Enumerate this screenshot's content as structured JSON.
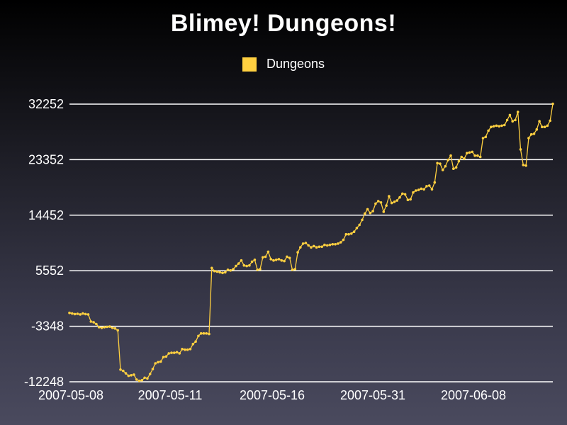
{
  "chart_data": {
    "type": "line",
    "title": "Blimey! Dungeons!",
    "xlabel": "",
    "ylabel": "",
    "legend": "top-center",
    "grid": "horizontal",
    "x_tick_labels": [
      "2007-05-08",
      "2007-05-11",
      "2007-05-16",
      "2007-05-31",
      "2007-06-08"
    ],
    "y_ticks": [
      -12248,
      -3348,
      5552,
      14452,
      23352,
      32252
    ],
    "ylim": [
      -12248,
      32252
    ],
    "series": [
      {
        "name": "Dungeons",
        "color": "#ffd040",
        "values": [
          -1200,
          -1300,
          -1400,
          -1350,
          -1450,
          -1300,
          -1400,
          -1450,
          -2600,
          -2700,
          -3000,
          -3500,
          -3600,
          -3500,
          -3450,
          -3400,
          -3600,
          -3700,
          -4000,
          -10300,
          -10500,
          -10900,
          -11300,
          -11200,
          -11100,
          -11900,
          -12100,
          -12000,
          -11600,
          -11700,
          -11000,
          -10200,
          -9300,
          -9100,
          -9000,
          -8300,
          -8200,
          -7700,
          -7600,
          -7600,
          -7500,
          -7700,
          -7000,
          -7100,
          -7100,
          -7000,
          -6200,
          -5800,
          -4900,
          -4500,
          -4500,
          -4500,
          -4600,
          6000,
          5500,
          5400,
          5300,
          5200,
          5300,
          5700,
          5600,
          5800,
          6300,
          6700,
          7200,
          6400,
          6300,
          6400,
          7000,
          7300,
          5700,
          5800,
          7700,
          7800,
          8600,
          7400,
          7200,
          7300,
          7400,
          7200,
          7100,
          7800,
          7600,
          5700,
          5800,
          8500,
          9300,
          9900,
          10000,
          9600,
          9300,
          9500,
          9300,
          9400,
          9400,
          9700,
          9600,
          9700,
          9800,
          9800,
          9900,
          10100,
          10500,
          11400,
          11400,
          11500,
          11800,
          12400,
          12900,
          13700,
          14700,
          15400,
          14800,
          15100,
          16300,
          16700,
          16500,
          15000,
          16000,
          17500,
          16400,
          16600,
          16800,
          17300,
          17900,
          17800,
          16900,
          17000,
          18100,
          18400,
          18500,
          18700,
          18600,
          19100,
          19200,
          18600,
          19700,
          22800,
          22700,
          21700,
          22300,
          23300,
          24000,
          21900,
          22100,
          23100,
          23800,
          23500,
          24400,
          24500,
          24600,
          24000,
          24000,
          23800,
          26800,
          27000,
          28000,
          28600,
          28700,
          28800,
          28700,
          28800,
          28900,
          29700,
          30500,
          29500,
          29700,
          31000,
          25000,
          22500,
          22400,
          26800,
          27400,
          27500,
          28200,
          29500,
          28600,
          28600,
          28800,
          29600,
          32300
        ]
      }
    ]
  }
}
